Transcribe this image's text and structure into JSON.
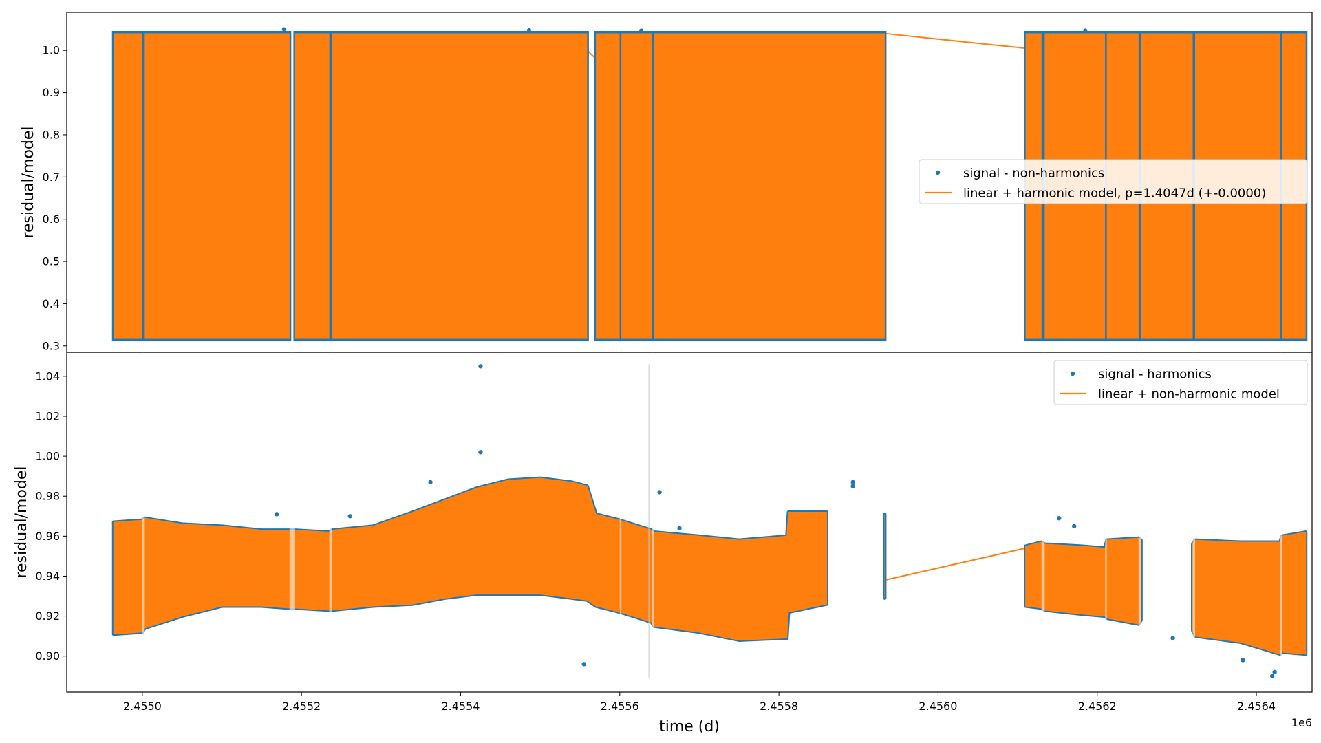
{
  "colors": {
    "signal": "#1f77b4",
    "model": "#ff7f0e",
    "vline": "#c8c8c8",
    "legend_border": "#cccccc"
  },
  "chart_data": [
    {
      "type": "line",
      "panel": "top",
      "ylabel": "residual/model",
      "xlabel": "",
      "ylim": [
        0.285,
        1.09
      ],
      "xlim": [
        2454905,
        2456470
      ],
      "yticks": [
        "0.3",
        "0.4",
        "0.5",
        "0.6",
        "0.7",
        "0.8",
        "0.9",
        "1.0"
      ],
      "ytick_values": [
        0.3,
        0.4,
        0.5,
        0.6,
        0.7,
        0.8,
        0.9,
        1.0
      ],
      "band": [
        0.315,
        1.042
      ],
      "segments": [
        [
          2454964,
          2455000
        ],
        [
          2455003,
          2455185
        ],
        [
          2455192,
          2455235
        ],
        [
          2455238,
          2455559
        ],
        [
          2455570,
          2455600
        ],
        [
          2455602,
          2455640
        ],
        [
          2455643,
          2455933
        ],
        [
          2456110,
          2456130
        ],
        [
          2456134,
          2456210
        ],
        [
          2456212,
          2456252
        ],
        [
          2456255,
          2456320
        ],
        [
          2456323,
          2456430
        ],
        [
          2456432,
          2456462
        ]
      ],
      "legend_location": "center-right",
      "series": [
        {
          "name": "signal - non-harmonics",
          "marker": "point"
        },
        {
          "name": "linear + harmonic model, p=1.4047d (+-0.0000)",
          "marker": "line"
        }
      ],
      "outliers": [
        [
          2455178,
          1.05
        ],
        [
          2455486,
          1.048
        ],
        [
          2455627,
          1.047
        ],
        [
          2456185,
          1.047
        ]
      ],
      "gap_connector": [
        [
          2455933,
          1.04
        ],
        [
          2456110,
          1.005
        ]
      ],
      "grid": false
    },
    {
      "type": "line",
      "panel": "bottom",
      "ylabel": "residual/model",
      "xlabel": "time (d)",
      "x_offset_label": "1e6",
      "ylim": [
        0.882,
        1.052
      ],
      "xlim": [
        2454905,
        2456470
      ],
      "yticks": [
        "0.90",
        "0.92",
        "0.94",
        "0.96",
        "0.98",
        "1.00",
        "1.02",
        "1.04"
      ],
      "ytick_values": [
        0.9,
        0.92,
        0.94,
        0.96,
        0.98,
        1.0,
        1.02,
        1.04
      ],
      "xticks": [
        "2.4550",
        "2.4552",
        "2.4554",
        "2.4556",
        "2.4558",
        "2.4560",
        "2.4562",
        "2.4564"
      ],
      "xtick_values": [
        2455000,
        2455200,
        2455400,
        2455600,
        2455800,
        2456000,
        2456200,
        2456400
      ],
      "vline_x": 2455637,
      "vline_y": [
        0.889,
        1.046
      ],
      "legend_location": "upper-right",
      "series": [
        {
          "name": "signal - harmonics",
          "marker": "point"
        },
        {
          "name": "linear + non-harmonic model",
          "marker": "line"
        }
      ],
      "envelope": {
        "x": [
          2454964,
          2455000,
          2455003,
          2455050,
          2455100,
          2455150,
          2455185,
          2455192,
          2455235,
          2455238,
          2455290,
          2455340,
          2455380,
          2455420,
          2455460,
          2455500,
          2455540,
          2455559,
          2455570,
          2455600,
          2455640,
          2455643,
          2455700,
          2455750,
          2455810,
          2455812,
          2455860,
          2455933,
          2456110,
          2456130,
          2456134,
          2456180,
          2456210,
          2456212,
          2456252,
          2456255,
          2456320,
          2456323,
          2456380,
          2456430,
          2456432,
          2456462
        ],
        "upper": [
          0.967,
          0.968,
          0.969,
          0.966,
          0.965,
          0.963,
          0.963,
          0.963,
          0.962,
          0.963,
          0.965,
          0.972,
          0.978,
          0.984,
          0.988,
          0.989,
          0.987,
          0.985,
          0.971,
          0.968,
          0.963,
          0.962,
          0.96,
          0.958,
          0.96,
          0.972,
          0.972,
          0.971,
          0.955,
          0.957,
          0.956,
          0.955,
          0.954,
          0.958,
          0.959,
          0.958,
          0.956,
          0.958,
          0.957,
          0.957,
          0.96,
          0.962
        ],
        "lower": [
          0.911,
          0.912,
          0.914,
          0.92,
          0.925,
          0.925,
          0.924,
          0.924,
          0.923,
          0.923,
          0.925,
          0.926,
          0.929,
          0.931,
          0.931,
          0.931,
          0.929,
          0.928,
          0.925,
          0.922,
          0.917,
          0.915,
          0.912,
          0.908,
          0.909,
          0.922,
          0.926,
          0.929,
          0.925,
          0.924,
          0.923,
          0.921,
          0.92,
          0.919,
          0.916,
          0.918,
          0.913,
          0.91,
          0.907,
          0.901,
          0.902,
          0.901
        ]
      },
      "outliers": [
        [
          2455425,
          1.045
        ],
        [
          2455425,
          1.002
        ],
        [
          2455362,
          0.987
        ],
        [
          2455169,
          0.971
        ],
        [
          2455261,
          0.97
        ],
        [
          2455555,
          0.896
        ],
        [
          2455650,
          0.982
        ],
        [
          2455675,
          0.964
        ],
        [
          2456152,
          0.969
        ],
        [
          2456171,
          0.965
        ],
        [
          2455893,
          0.985
        ],
        [
          2455893,
          0.987
        ],
        [
          2456295,
          0.909
        ],
        [
          2456420,
          0.89
        ],
        [
          2456423,
          0.892
        ],
        [
          2456383,
          0.898
        ]
      ],
      "gap_connector": [
        [
          2455933,
          0.938
        ],
        [
          2456110,
          0.954
        ]
      ],
      "grid": false
    }
  ]
}
